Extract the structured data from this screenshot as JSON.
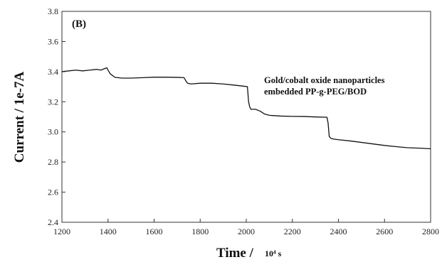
{
  "chart_data": {
    "type": "line",
    "panel_label": "(B)",
    "xlabel_main": "Time /",
    "xlabel_unit": "10⁴ s",
    "ylabel": "Current / 1e-7A",
    "xlim": [
      1200,
      2800
    ],
    "ylim": [
      2.4,
      3.8
    ],
    "x_ticks": [
      "1200",
      "1400",
      "1600",
      "1800",
      "2000",
      "2200",
      "2400",
      "2600",
      "2800"
    ],
    "y_ticks": [
      "2.4",
      "2.6",
      "2.8",
      "3.0",
      "3.2",
      "3.4",
      "3.6",
      "3.8"
    ],
    "annotation": [
      "Gold/cobalt oxide nanoparticles",
      "embedded PP-g-PEG/BOD"
    ],
    "grid": false,
    "series": [
      {
        "x": [
          1200,
          1230,
          1260,
          1290,
          1320,
          1350,
          1370,
          1385,
          1395,
          1400,
          1410,
          1430,
          1460,
          1500,
          1550,
          1600,
          1650,
          1700,
          1730,
          1738,
          1745,
          1760,
          1800,
          1850,
          1900,
          1950,
          1990,
          2005,
          2010,
          2015,
          2020,
          2040,
          2060,
          2070,
          2080,
          2100,
          2150,
          2200,
          2250,
          2300,
          2350,
          2355,
          2360,
          2365,
          2370,
          2380,
          2400,
          2450,
          2500,
          2550,
          2600,
          2650,
          2700,
          2750,
          2800
        ],
        "y": [
          3.4,
          3.405,
          3.41,
          3.405,
          3.41,
          3.415,
          3.41,
          3.42,
          3.425,
          3.41,
          3.385,
          3.362,
          3.357,
          3.357,
          3.36,
          3.363,
          3.363,
          3.362,
          3.36,
          3.338,
          3.323,
          3.318,
          3.323,
          3.323,
          3.318,
          3.31,
          3.303,
          3.3,
          3.2,
          3.165,
          3.15,
          3.15,
          3.138,
          3.128,
          3.118,
          3.11,
          3.105,
          3.103,
          3.102,
          3.099,
          3.097,
          3.06,
          2.97,
          2.96,
          2.955,
          2.952,
          2.948,
          2.94,
          2.93,
          2.92,
          2.91,
          2.902,
          2.895,
          2.892,
          2.888
        ]
      }
    ]
  }
}
